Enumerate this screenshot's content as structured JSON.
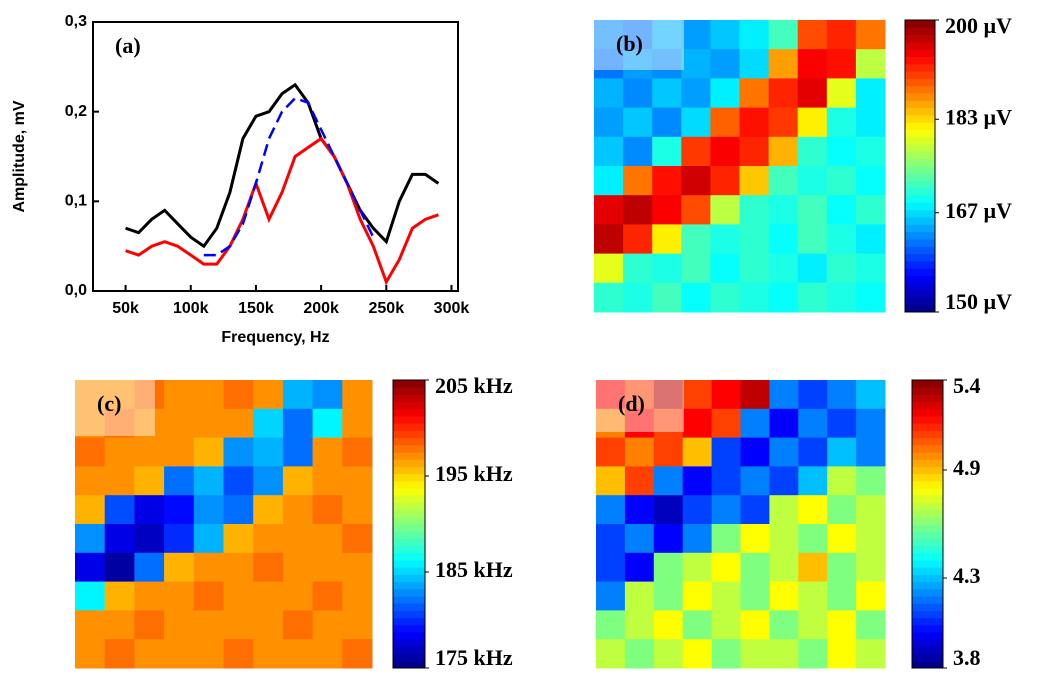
{
  "chart_data": [
    {
      "type": "line",
      "panel_label": "(a)",
      "x_label": "Frequency, Hz",
      "y_label": "Amplitude, mV",
      "x": [
        50000,
        60000,
        70000,
        80000,
        90000,
        100000,
        110000,
        120000,
        130000,
        140000,
        150000,
        160000,
        170000,
        180000,
        190000,
        200000,
        210000,
        220000,
        230000,
        240000,
        250000,
        260000,
        270000,
        280000,
        290000
      ],
      "series": [
        {
          "color": "#000000",
          "style": "solid",
          "values": [
            0.07,
            0.065,
            0.08,
            0.09,
            0.075,
            0.06,
            0.05,
            0.07,
            0.11,
            0.17,
            0.195,
            0.2,
            0.22,
            0.23,
            0.21,
            0.17,
            0.15,
            0.12,
            0.09,
            0.07,
            0.055,
            0.1,
            0.13,
            0.13,
            0.12
          ]
        },
        {
          "color": "#ff0000",
          "style": "solid",
          "values": [
            0.045,
            0.04,
            0.05,
            0.055,
            0.05,
            0.04,
            0.03,
            0.03,
            0.05,
            0.08,
            0.12,
            0.08,
            0.11,
            0.15,
            0.16,
            0.17,
            0.15,
            0.12,
            0.08,
            0.05,
            0.01,
            0.035,
            0.07,
            0.08,
            0.085
          ]
        },
        {
          "color": "#0000ff",
          "style": "dashed",
          "values": [
            null,
            null,
            null,
            null,
            null,
            null,
            0.04,
            0.04,
            0.05,
            0.075,
            0.12,
            0.17,
            0.2,
            0.215,
            0.21,
            0.18,
            0.15,
            0.12,
            0.09,
            0.06,
            null,
            null,
            null,
            null,
            null
          ]
        }
      ],
      "xlim": [
        25000,
        305000
      ],
      "xticks": [
        {
          "value": 50000,
          "label": "50k"
        },
        {
          "value": 100000,
          "label": "100k"
        },
        {
          "value": 150000,
          "label": "150k"
        },
        {
          "value": 200000,
          "label": "200k"
        },
        {
          "value": 250000,
          "label": "250k"
        },
        {
          "value": 300000,
          "label": "300k"
        }
      ],
      "ylim": [
        0,
        0.3
      ],
      "yticks": [
        {
          "value": 0,
          "label": "0,0"
        },
        {
          "value": 0.1,
          "label": "0,1"
        },
        {
          "value": 0.2,
          "label": "0,2"
        },
        {
          "value": 0.3,
          "label": "0,3"
        }
      ]
    },
    {
      "type": "heatmap",
      "panel_label": "(b)",
      "colormap": "jet",
      "zlim": [
        150,
        200
      ],
      "zticks": [
        {
          "value": 200,
          "label": "200 µV"
        },
        {
          "value": 183,
          "label": "183 µV"
        },
        {
          "value": 167,
          "label": "167 µV"
        },
        {
          "value": 150,
          "label": "150 µV"
        }
      ],
      "z": [
        [
          163,
          162,
          165,
          164,
          166,
          168,
          172,
          190,
          192,
          188
        ],
        [
          162,
          164,
          163,
          165,
          164,
          167,
          186,
          194,
          193,
          178
        ],
        [
          165,
          163,
          166,
          164,
          168,
          188,
          192,
          195,
          180,
          168
        ],
        [
          164,
          166,
          163,
          167,
          189,
          193,
          191,
          182,
          170,
          168
        ],
        [
          166,
          163,
          170,
          191,
          194,
          192,
          185,
          171,
          169,
          170
        ],
        [
          168,
          188,
          193,
          196,
          192,
          184,
          172,
          170,
          171,
          169
        ],
        [
          195,
          197,
          194,
          190,
          178,
          171,
          170,
          172,
          169,
          171
        ],
        [
          197,
          192,
          182,
          172,
          170,
          171,
          169,
          172,
          170,
          168
        ],
        [
          180,
          171,
          170,
          172,
          169,
          171,
          170,
          168,
          171,
          170
        ],
        [
          171,
          170,
          172,
          169,
          171,
          170,
          169,
          171,
          170,
          169
        ]
      ]
    },
    {
      "type": "heatmap",
      "panel_label": "(c)",
      "colormap": "jet",
      "zlim": [
        175,
        205
      ],
      "zticks": [
        {
          "value": 205,
          "label": "205 kHz"
        },
        {
          "value": 195,
          "label": "195 kHz"
        },
        {
          "value": 185,
          "label": "185 kHz"
        },
        {
          "value": 175,
          "label": "175 kHz"
        }
      ],
      "z": [
        [
          197,
          197,
          198,
          197,
          197,
          198,
          197,
          184,
          183,
          197
        ],
        [
          197,
          198,
          197,
          197,
          197,
          197,
          185,
          182,
          186,
          197
        ],
        [
          198,
          197,
          197,
          197,
          196,
          183,
          184,
          182,
          197,
          198
        ],
        [
          197,
          197,
          196,
          182,
          184,
          181,
          183,
          196,
          197,
          197
        ],
        [
          196,
          181,
          178,
          179,
          183,
          182,
          196,
          197,
          198,
          197
        ],
        [
          183,
          178,
          177,
          180,
          184,
          196,
          197,
          197,
          197,
          198
        ],
        [
          178,
          176,
          182,
          196,
          197,
          197,
          198,
          197,
          197,
          197
        ],
        [
          186,
          196,
          197,
          197,
          198,
          197,
          197,
          197,
          198,
          197
        ],
        [
          197,
          197,
          198,
          197,
          197,
          197,
          197,
          198,
          197,
          197
        ],
        [
          197,
          198,
          197,
          197,
          197,
          198,
          197,
          197,
          197,
          198
        ]
      ]
    },
    {
      "type": "heatmap",
      "panel_label": "(d)",
      "colormap": "jet",
      "zlim": [
        3.8,
        5.4
      ],
      "zticks": [
        5.4,
        4.9,
        4.3,
        3.8
      ],
      "z": [
        [
          5.2,
          5.1,
          5.3,
          5.1,
          5.2,
          5.3,
          4.2,
          4.1,
          4.2,
          4.3
        ],
        [
          5.0,
          5.2,
          5.1,
          5.2,
          5.1,
          4.2,
          4.0,
          4.2,
          4.1,
          4.2
        ],
        [
          5.1,
          5.0,
          5.1,
          4.9,
          4.1,
          4.0,
          4.2,
          4.1,
          4.3,
          4.2
        ],
        [
          4.9,
          5.1,
          4.2,
          4.0,
          4.1,
          4.2,
          4.1,
          4.3,
          4.7,
          4.6
        ],
        [
          4.2,
          4.0,
          3.9,
          4.1,
          4.2,
          4.1,
          4.7,
          4.8,
          4.6,
          4.7
        ],
        [
          4.1,
          4.2,
          4.0,
          4.2,
          4.6,
          4.8,
          4.7,
          4.6,
          4.8,
          4.7
        ],
        [
          4.1,
          4.0,
          4.6,
          4.7,
          4.8,
          4.6,
          4.7,
          4.9,
          4.6,
          4.7
        ],
        [
          4.2,
          4.7,
          4.6,
          4.8,
          4.7,
          4.6,
          4.8,
          4.7,
          4.6,
          4.8
        ],
        [
          4.6,
          4.7,
          4.8,
          4.6,
          4.7,
          4.8,
          4.6,
          4.7,
          4.8,
          4.6
        ],
        [
          4.7,
          4.6,
          4.7,
          4.8,
          4.6,
          4.7,
          4.7,
          4.6,
          4.8,
          4.7
        ]
      ]
    }
  ]
}
